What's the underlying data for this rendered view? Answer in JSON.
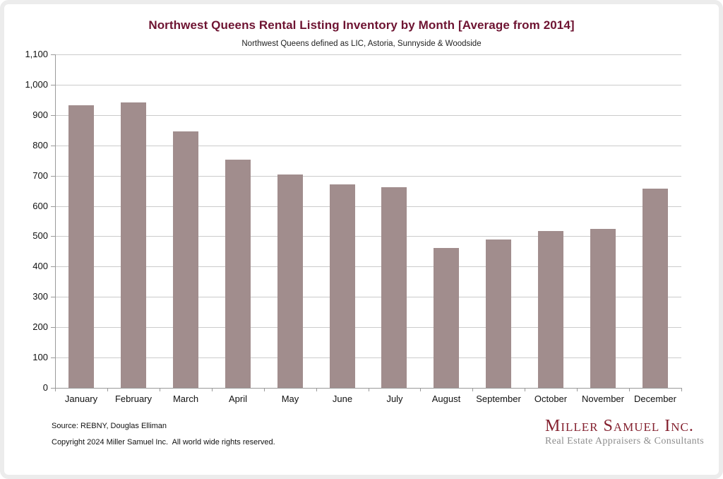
{
  "header": {
    "title": "Northwest Queens Rental Listing Inventory by Month [Average from 2014]",
    "subtitle": "Northwest Queens defined as LIC, Astoria, Sunnyside & Woodside"
  },
  "chart_data": {
    "type": "bar",
    "title": "Northwest Queens Rental Listing Inventory by Month [Average from 2014]",
    "subtitle": "Northwest Queens defined as LIC, Astoria, Sunnyside & Woodside",
    "categories": [
      "January",
      "February",
      "March",
      "April",
      "May",
      "June",
      "July",
      "August",
      "September",
      "October",
      "November",
      "December"
    ],
    "values": [
      933,
      942,
      846,
      752,
      703,
      671,
      663,
      462,
      489,
      517,
      525,
      658
    ],
    "xlabel": "",
    "ylabel": "",
    "ylim": [
      0,
      1100
    ],
    "grid": "horizontal",
    "legend": "none",
    "y_ticks": [
      {
        "value": 0,
        "label": "0"
      },
      {
        "value": 100,
        "label": "100"
      },
      {
        "value": 200,
        "label": "200"
      },
      {
        "value": 300,
        "label": "300"
      },
      {
        "value": 400,
        "label": "400"
      },
      {
        "value": 500,
        "label": "500"
      },
      {
        "value": 600,
        "label": "600"
      },
      {
        "value": 700,
        "label": "700"
      },
      {
        "value": 800,
        "label": "800"
      },
      {
        "value": 900,
        "label": "900"
      },
      {
        "value": 1000,
        "label": "1,000"
      },
      {
        "value": 1100,
        "label": "1,100"
      }
    ]
  },
  "footer": {
    "source_line": "Source: REBNY, Douglas Elliman",
    "copyright_line": "Copyright 2024 Miller Samuel Inc.  All world wide rights reserved."
  },
  "branding": {
    "company": "Miller Samuel Inc.",
    "tagline": "Real Estate Appraisers & Consultants"
  },
  "colors": {
    "title": "#6E1432",
    "bar": "#A18D8D",
    "gridline": "#CBCBCB",
    "axis": "#9A9A9A",
    "logo": "#84212F",
    "tagline": "#8D8D8D",
    "border": "#ECECEC"
  }
}
